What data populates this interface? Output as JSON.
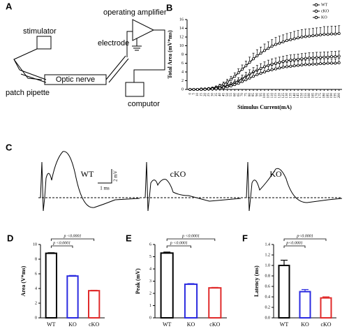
{
  "diagram": {
    "panel": "A",
    "stimulator": "stimulator",
    "amplifier": "operating amplifier",
    "electrode": "electrode",
    "nerve": "Optic nerve",
    "pipette": "patch pipette",
    "computer": "computor"
  },
  "traces": {
    "panel": "C",
    "titles": [
      "WT",
      "cKO",
      "KO"
    ],
    "scale_y": "2 mV",
    "scale_x": "1 ms"
  },
  "chart_data": [
    {
      "type": "line",
      "panel": "B",
      "ylabel": "Total Area (mV*ms)",
      "xlabel": "Stimulus Current(mA)",
      "legend": "upper right",
      "grid": false,
      "x": [
        0,
        5,
        10,
        15,
        20,
        25,
        30,
        35,
        40,
        45,
        50,
        55,
        60,
        65,
        70,
        75,
        80,
        85,
        90,
        95,
        100,
        105,
        110,
        115,
        120,
        125,
        130,
        135,
        140,
        145,
        150,
        155,
        160,
        165,
        170,
        175,
        180,
        185,
        190,
        195,
        200
      ],
      "xlim": [
        -4,
        204
      ],
      "xticks": [
        0,
        5,
        10,
        15,
        20,
        25,
        30,
        35,
        40,
        45,
        50,
        55,
        60,
        65,
        70,
        75,
        80,
        85,
        90,
        95,
        100,
        105,
        110,
        115,
        120,
        125,
        130,
        135,
        140,
        145,
        150,
        155,
        160,
        165,
        170,
        175,
        180,
        185,
        190,
        195,
        200
      ],
      "ylim": [
        0,
        16
      ],
      "yticks": [
        0,
        2,
        4,
        6,
        8,
        10,
        12,
        14,
        16
      ],
      "series": [
        {
          "name": "WT",
          "color": "#000000",
          "values": [
            0,
            0,
            0,
            0.1,
            0.1,
            0.2,
            0.3,
            0.5,
            0.8,
            1.2,
            1.7,
            2.3,
            3.0,
            3.8,
            4.6,
            5.4,
            6.2,
            7.0,
            7.7,
            8.3,
            8.9,
            9.4,
            9.9,
            10.3,
            10.6,
            10.9,
            11.2,
            11.4,
            11.6,
            11.8,
            12.0,
            12.1,
            12.2,
            12.3,
            12.4,
            12.5,
            12.6,
            12.6,
            12.7,
            12.7,
            12.8
          ],
          "errors": [
            0,
            0,
            0,
            0.1,
            0.1,
            0.1,
            0.2,
            0.3,
            0.4,
            0.5,
            0.6,
            0.7,
            0.8,
            0.9,
            1.0,
            1.1,
            1.2,
            1.3,
            1.4,
            1.4,
            1.5,
            1.5,
            1.5,
            1.6,
            1.6,
            1.6,
            1.6,
            1.6,
            1.7,
            1.7,
            1.7,
            1.7,
            1.7,
            1.7,
            1.7,
            1.7,
            1.8,
            1.8,
            1.8,
            1.8,
            1.8
          ]
        },
        {
          "name": "cKO",
          "color": "#000000",
          "values": [
            0,
            0,
            0,
            0,
            0.1,
            0.1,
            0.2,
            0.3,
            0.4,
            0.6,
            0.9,
            1.2,
            1.6,
            2.0,
            2.5,
            3.0,
            3.5,
            4.0,
            4.4,
            4.8,
            5.2,
            5.5,
            5.8,
            6.0,
            6.2,
            6.4,
            6.6,
            6.7,
            6.8,
            6.9,
            7.0,
            7.1,
            7.2,
            7.2,
            7.3,
            7.3,
            7.4,
            7.4,
            7.5,
            7.5,
            7.6
          ],
          "errors": [
            0,
            0,
            0,
            0,
            0.1,
            0.1,
            0.1,
            0.2,
            0.2,
            0.3,
            0.4,
            0.5,
            0.6,
            0.7,
            0.8,
            0.9,
            1.0,
            1.0,
            1.1,
            1.1,
            1.1,
            1.2,
            1.2,
            1.2,
            1.2,
            1.2,
            1.2,
            1.2,
            1.2,
            1.2,
            1.2,
            1.2,
            1.2,
            1.2,
            1.2,
            1.2,
            1.2,
            1.2,
            1.2,
            1.2,
            1.2
          ]
        },
        {
          "name": "KO",
          "color": "#000000",
          "values": [
            0,
            0,
            0,
            0,
            0,
            0.1,
            0.1,
            0.2,
            0.3,
            0.4,
            0.6,
            0.8,
            1.1,
            1.4,
            1.8,
            2.2,
            2.6,
            3.0,
            3.4,
            3.7,
            4.0,
            4.3,
            4.5,
            4.7,
            4.9,
            5.1,
            5.2,
            5.3,
            5.4,
            5.5,
            5.6,
            5.7,
            5.7,
            5.8,
            5.8,
            5.9,
            5.9,
            6.0,
            6.0,
            6.0,
            6.1
          ],
          "errors": [
            0,
            0,
            0,
            0,
            0,
            0.1,
            0.1,
            0.1,
            0.2,
            0.2,
            0.3,
            0.4,
            0.5,
            0.6,
            0.7,
            0.8,
            0.8,
            0.9,
            0.9,
            0.9,
            1.0,
            1.0,
            1.0,
            1.0,
            1.0,
            1.0,
            1.0,
            1.0,
            1.0,
            1.0,
            1.0,
            1.0,
            1.0,
            1.0,
            1.0,
            1.0,
            1.0,
            1.0,
            1.0,
            1.0,
            1.0
          ]
        }
      ]
    },
    {
      "type": "bar",
      "panel": "D",
      "ylabel": "Area (V*ms)",
      "grid": false,
      "categories": [
        "WT",
        "KO",
        "cKO"
      ],
      "values": [
        8.8,
        5.7,
        3.7
      ],
      "errors": [
        0.08,
        0.08,
        0.06
      ],
      "colors": [
        "#000000",
        "#2a2ae0",
        "#e02a2a"
      ],
      "ylim": [
        0,
        10
      ],
      "yticks": [
        0,
        2,
        4,
        6,
        8,
        10
      ],
      "annotations": [
        "p <0.0001",
        "p <0.0001"
      ]
    },
    {
      "type": "bar",
      "panel": "E",
      "ylabel": "Peak (mV)",
      "grid": false,
      "categories": [
        "WT",
        "KO",
        "cKO"
      ],
      "values": [
        5.3,
        2.75,
        2.45
      ],
      "errors": [
        0.08,
        0.05,
        0.04
      ],
      "colors": [
        "#000000",
        "#2a2ae0",
        "#e02a2a"
      ],
      "ylim": [
        0,
        6
      ],
      "yticks": [
        0,
        1,
        2,
        3,
        4,
        5,
        6
      ],
      "annotations": [
        "p <0.0001",
        "p <0.0001"
      ]
    },
    {
      "type": "bar",
      "panel": "F",
      "ylabel": "Latency (ms)",
      "grid": false,
      "categories": [
        "WT",
        "KO",
        "cKO"
      ],
      "values": [
        1.0,
        0.5,
        0.38
      ],
      "errors": [
        0.1,
        0.04,
        0.02
      ],
      "colors": [
        "#000000",
        "#2a2ae0",
        "#e02a2a"
      ],
      "ylim": [
        0,
        1.4
      ],
      "yticks": [
        {
          "value": 0,
          "label": "0.0"
        },
        0.2,
        0.4,
        0.6,
        0.8,
        {
          "value": 1,
          "label": "1.0"
        },
        1.2,
        1.4
      ],
      "annotations": [
        "p<0.0001",
        "p<0.0001"
      ]
    }
  ]
}
